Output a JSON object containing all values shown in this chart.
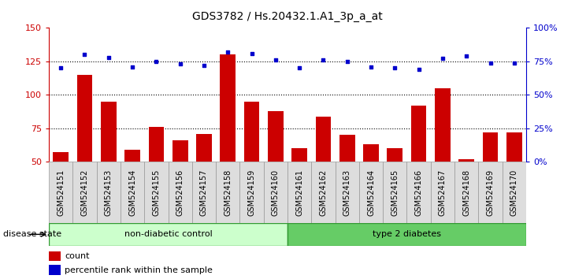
{
  "title": "GDS3782 / Hs.20432.1.A1_3p_a_at",
  "samples": [
    "GSM524151",
    "GSM524152",
    "GSM524153",
    "GSM524154",
    "GSM524155",
    "GSM524156",
    "GSM524157",
    "GSM524158",
    "GSM524159",
    "GSM524160",
    "GSM524161",
    "GSM524162",
    "GSM524163",
    "GSM524164",
    "GSM524165",
    "GSM524166",
    "GSM524167",
    "GSM524168",
    "GSM524169",
    "GSM524170"
  ],
  "bar_values": [
    57,
    115,
    95,
    59,
    76,
    66,
    71,
    130,
    95,
    88,
    60,
    84,
    70,
    63,
    60,
    92,
    105,
    52,
    72,
    72
  ],
  "dot_pct": [
    70,
    80,
    78,
    71,
    75,
    73,
    72,
    82,
    81,
    76,
    70,
    76,
    75,
    71,
    70,
    69,
    77,
    79,
    74,
    74
  ],
  "bar_color": "#cc0000",
  "dot_color": "#0000cc",
  "left_ylim": [
    50,
    150
  ],
  "left_yticks": [
    50,
    75,
    100,
    125,
    150
  ],
  "right_ylim": [
    0,
    100
  ],
  "right_yticks": [
    0,
    25,
    50,
    75,
    100
  ],
  "right_yticklabels": [
    "0%",
    "25%",
    "50%",
    "75%",
    "100%"
  ],
  "hlines": [
    75,
    100,
    125
  ],
  "group1_label": "non-diabetic control",
  "group2_label": "type 2 diabetes",
  "group1_n": 10,
  "group2_n": 10,
  "group1_color": "#ccffcc",
  "group2_color": "#66cc66",
  "group_border_color": "#339933",
  "disease_state_label": "disease state",
  "legend_bar_label": "count",
  "legend_dot_label": "percentile rank within the sample",
  "bg_color": "#ffffff",
  "tick_bg_color": "#dddddd",
  "title_fontsize": 10,
  "tick_fontsize": 7,
  "label_fontsize": 8,
  "bar_width": 0.65
}
